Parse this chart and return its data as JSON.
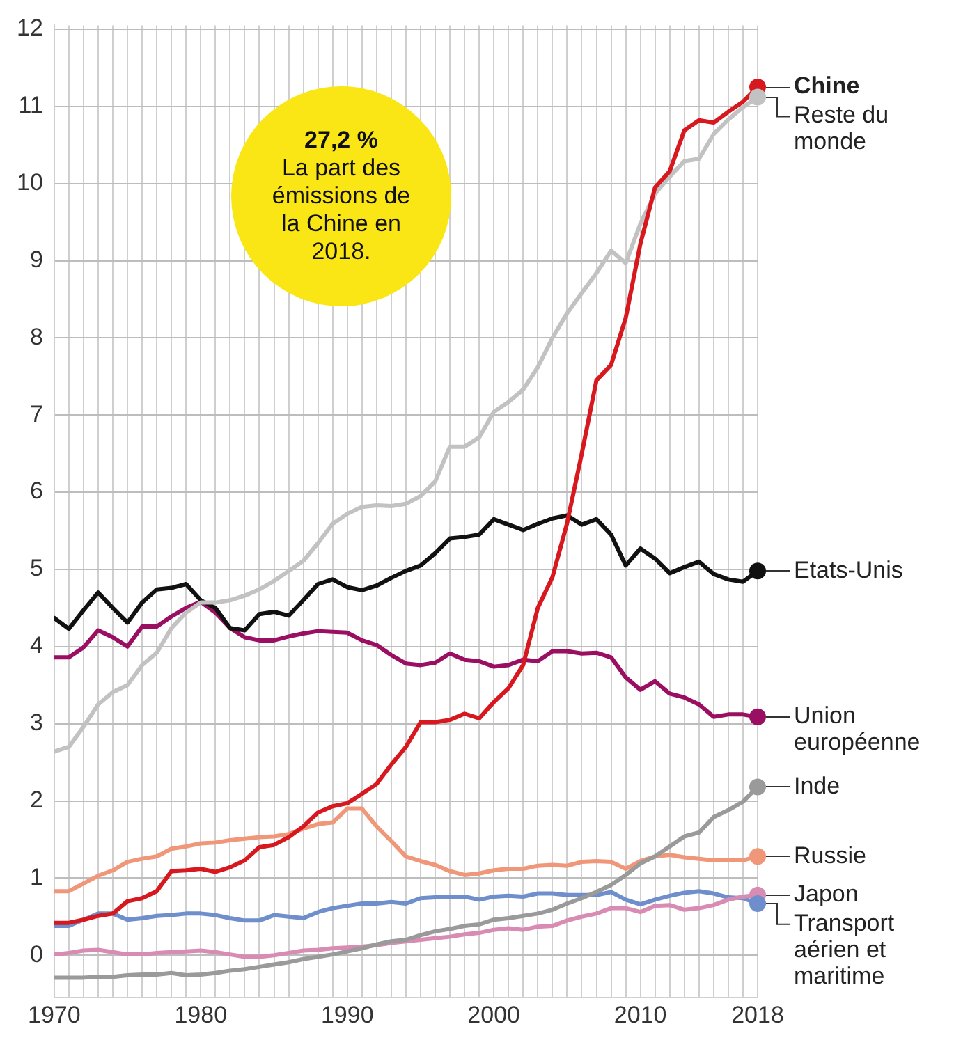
{
  "chart_data": {
    "type": "line",
    "annotations": [
      "27,2 %",
      "La part des émissions de la Chine en 2018."
    ],
    "x": [
      1970,
      1971,
      1972,
      1973,
      1974,
      1975,
      1976,
      1977,
      1978,
      1979,
      1980,
      1981,
      1982,
      1983,
      1984,
      1985,
      1986,
      1987,
      1988,
      1989,
      1990,
      1991,
      1992,
      1993,
      1994,
      1995,
      1996,
      1997,
      1998,
      1999,
      2000,
      2001,
      2002,
      2003,
      2004,
      2005,
      2006,
      2007,
      2008,
      2009,
      2010,
      2011,
      2012,
      2013,
      2014,
      2015,
      2016,
      2017,
      2018
    ],
    "series": [
      {
        "name": "Chine",
        "color": "#d7191f",
        "values": [
          0.42,
          0.42,
          0.46,
          0.51,
          0.54,
          0.7,
          0.74,
          0.83,
          1.09,
          1.1,
          1.12,
          1.08,
          1.14,
          1.23,
          1.4,
          1.43,
          1.53,
          1.67,
          1.85,
          1.93,
          1.97,
          2.09,
          2.22,
          2.47,
          2.7,
          3.02,
          3.02,
          3.05,
          3.13,
          3.07,
          3.28,
          3.46,
          3.76,
          4.5,
          4.9,
          5.6,
          6.5,
          7.45,
          7.65,
          8.26,
          9.22,
          9.95,
          10.16,
          10.69,
          10.82,
          10.79,
          10.93,
          11.06,
          11.25
        ]
      },
      {
        "name": "Reste du monde",
        "color": "#c2c2c2",
        "values": [
          2.64,
          2.7,
          2.96,
          3.25,
          3.41,
          3.5,
          3.76,
          3.92,
          4.24,
          4.44,
          4.57,
          4.57,
          4.6,
          4.66,
          4.74,
          4.85,
          4.98,
          5.11,
          5.34,
          5.59,
          5.72,
          5.81,
          5.83,
          5.82,
          5.85,
          5.95,
          6.14,
          6.59,
          6.59,
          6.71,
          7.04,
          7.17,
          7.33,
          7.62,
          8.0,
          8.32,
          8.58,
          8.84,
          9.13,
          8.97,
          9.48,
          9.87,
          10.09,
          10.29,
          10.32,
          10.64,
          10.83,
          10.99,
          11.12
        ]
      },
      {
        "name": "Etats-Unis",
        "color": "#111111",
        "values": [
          4.37,
          4.23,
          4.47,
          4.7,
          4.5,
          4.31,
          4.57,
          4.74,
          4.76,
          4.81,
          4.6,
          4.5,
          4.24,
          4.21,
          4.42,
          4.45,
          4.4,
          4.6,
          4.81,
          4.87,
          4.77,
          4.73,
          4.79,
          4.89,
          4.98,
          5.05,
          5.21,
          5.4,
          5.42,
          5.45,
          5.65,
          5.58,
          5.51,
          5.59,
          5.66,
          5.7,
          5.58,
          5.65,
          5.45,
          5.05,
          5.27,
          5.14,
          4.95,
          5.03,
          5.1,
          4.94,
          4.87,
          4.84,
          4.98
        ]
      },
      {
        "name": "Union européenne",
        "color": "#9b0f62",
        "values": [
          3.86,
          3.86,
          3.99,
          4.21,
          4.12,
          4.0,
          4.26,
          4.26,
          4.39,
          4.5,
          4.58,
          4.44,
          4.24,
          4.12,
          4.08,
          4.08,
          4.13,
          4.17,
          4.2,
          4.19,
          4.18,
          4.08,
          4.02,
          3.89,
          3.78,
          3.76,
          3.79,
          3.91,
          3.83,
          3.81,
          3.74,
          3.76,
          3.83,
          3.81,
          3.94,
          3.94,
          3.91,
          3.92,
          3.86,
          3.6,
          3.44,
          3.55,
          3.39,
          3.34,
          3.25,
          3.09,
          3.12,
          3.12,
          3.09
        ]
      },
      {
        "name": "Inde",
        "color": "#9a9a9a",
        "values": [
          -0.29,
          -0.29,
          -0.29,
          -0.28,
          -0.28,
          -0.26,
          -0.25,
          -0.25,
          -0.23,
          -0.26,
          -0.25,
          -0.23,
          -0.2,
          -0.18,
          -0.15,
          -0.12,
          -0.09,
          -0.05,
          -0.02,
          0.01,
          0.05,
          0.09,
          0.14,
          0.18,
          0.2,
          0.26,
          0.31,
          0.34,
          0.38,
          0.4,
          0.46,
          0.48,
          0.51,
          0.54,
          0.59,
          0.67,
          0.74,
          0.82,
          0.91,
          1.04,
          1.19,
          1.28,
          1.41,
          1.54,
          1.59,
          1.79,
          1.88,
          1.99,
          2.18
        ]
      },
      {
        "name": "Russie",
        "color": "#f0977a",
        "values": [
          0.83,
          0.83,
          0.93,
          1.03,
          1.1,
          1.21,
          1.25,
          1.28,
          1.38,
          1.41,
          1.45,
          1.46,
          1.49,
          1.51,
          1.53,
          1.54,
          1.57,
          1.64,
          1.7,
          1.72,
          1.9,
          1.9,
          1.67,
          1.48,
          1.28,
          1.22,
          1.17,
          1.09,
          1.04,
          1.06,
          1.1,
          1.12,
          1.12,
          1.16,
          1.17,
          1.16,
          1.21,
          1.22,
          1.21,
          1.12,
          1.22,
          1.28,
          1.3,
          1.27,
          1.25,
          1.23,
          1.23,
          1.23,
          1.28
        ]
      },
      {
        "name": "Japon",
        "color": "#d98cb3",
        "values": [
          0.01,
          0.03,
          0.06,
          0.07,
          0.04,
          0.01,
          0.01,
          0.03,
          0.04,
          0.05,
          0.06,
          0.04,
          0.01,
          -0.02,
          -0.02,
          0.0,
          0.03,
          0.06,
          0.07,
          0.09,
          0.1,
          0.11,
          0.13,
          0.16,
          0.18,
          0.2,
          0.22,
          0.24,
          0.27,
          0.29,
          0.33,
          0.35,
          0.33,
          0.37,
          0.38,
          0.45,
          0.5,
          0.54,
          0.61,
          0.61,
          0.56,
          0.64,
          0.65,
          0.59,
          0.61,
          0.65,
          0.72,
          0.76,
          0.78
        ]
      },
      {
        "name": "Transport aérien et maritime",
        "color": "#6f8fcc",
        "values": [
          0.38,
          0.38,
          0.46,
          0.54,
          0.54,
          0.46,
          0.48,
          0.51,
          0.52,
          0.54,
          0.54,
          0.52,
          0.48,
          0.45,
          0.45,
          0.52,
          0.5,
          0.48,
          0.56,
          0.61,
          0.64,
          0.67,
          0.67,
          0.69,
          0.67,
          0.74,
          0.75,
          0.76,
          0.76,
          0.72,
          0.76,
          0.77,
          0.76,
          0.8,
          0.8,
          0.78,
          0.78,
          0.78,
          0.82,
          0.72,
          0.66,
          0.72,
          0.77,
          0.81,
          0.83,
          0.8,
          0.75,
          0.74,
          0.67
        ]
      }
    ],
    "xlim": [
      1970,
      2018
    ],
    "xticks": [
      1970,
      {
        "value": 1971,
        "label": null
      },
      {
        "value": 1972,
        "label": null
      },
      {
        "value": 1973,
        "label": null
      },
      {
        "value": 1974,
        "label": null
      },
      {
        "value": 1975,
        "label": null
      },
      {
        "value": 1976,
        "label": null
      },
      {
        "value": 1977,
        "label": null
      },
      {
        "value": 1978,
        "label": null
      },
      {
        "value": 1979,
        "label": null
      },
      1980,
      {
        "value": 1981,
        "label": null
      },
      {
        "value": 1982,
        "label": null
      },
      {
        "value": 1983,
        "label": null
      },
      {
        "value": 1984,
        "label": null
      },
      {
        "value": 1985,
        "label": null
      },
      {
        "value": 1986,
        "label": null
      },
      {
        "value": 1987,
        "label": null
      },
      {
        "value": 1988,
        "label": null
      },
      {
        "value": 1989,
        "label": null
      },
      1990,
      {
        "value": 1991,
        "label": null
      },
      {
        "value": 1992,
        "label": null
      },
      {
        "value": 1993,
        "label": null
      },
      {
        "value": 1994,
        "label": null
      },
      {
        "value": 1995,
        "label": null
      },
      {
        "value": 1996,
        "label": null
      },
      {
        "value": 1997,
        "label": null
      },
      {
        "value": 1998,
        "label": null
      },
      {
        "value": 1999,
        "label": null
      },
      2000,
      {
        "value": 2001,
        "label": null
      },
      {
        "value": 2002,
        "label": null
      },
      {
        "value": 2003,
        "label": null
      },
      {
        "value": 2004,
        "label": null
      },
      {
        "value": 2005,
        "label": null
      },
      {
        "value": 2006,
        "label": null
      },
      {
        "value": 2007,
        "label": null
      },
      {
        "value": 2008,
        "label": null
      },
      {
        "value": 2009,
        "label": null
      },
      2010,
      {
        "value": 2011,
        "label": null
      },
      {
        "value": 2012,
        "label": null
      },
      {
        "value": 2013,
        "label": null
      },
      {
        "value": 2014,
        "label": null
      },
      {
        "value": 2015,
        "label": null
      },
      {
        "value": 2016,
        "label": null
      },
      {
        "value": 2017,
        "label": null
      },
      2018
    ],
    "ylim": [
      -0.55,
      12.05
    ],
    "yticks": [
      0,
      1,
      2,
      3,
      4,
      5,
      6,
      7,
      8,
      9,
      10,
      11,
      12
    ],
    "grid": true,
    "legend": false,
    "line_style": "solid"
  }
}
